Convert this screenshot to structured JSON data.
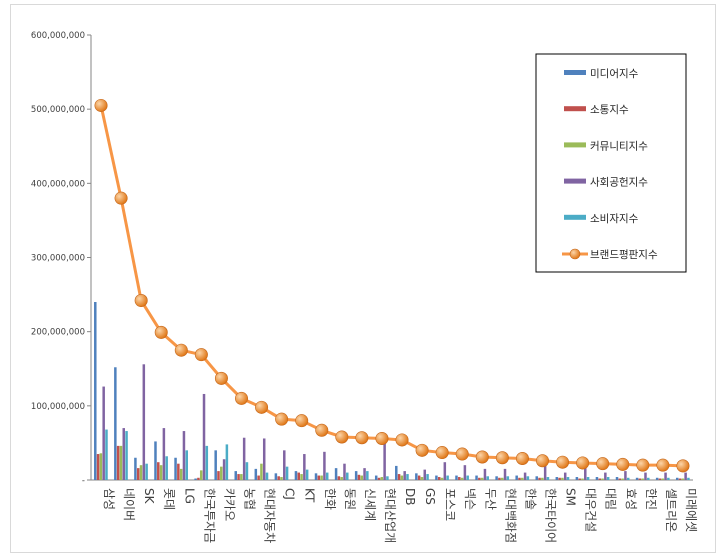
{
  "chart_data": {
    "type": "bar",
    "title": "",
    "xlabel": "",
    "ylabel": "",
    "ylim": [
      0,
      600000000
    ],
    "yticks": [
      0,
      100000000,
      200000000,
      300000000,
      400000000,
      500000000,
      600000000
    ],
    "ytick_labels": [
      "-",
      "100,000,000",
      "200,000,000",
      "300,000,000",
      "400,000,000",
      "500,000,000",
      "600,000,000"
    ],
    "grid": false,
    "legend_position": "top-right",
    "categories": [
      "삼성",
      "네이버",
      "SK",
      "롯데",
      "LG",
      "한국투자금융",
      "카카오",
      "농협",
      "현대자동차",
      "CJ",
      "KT",
      "한화",
      "동원",
      "신세계",
      "현대산업개발",
      "DB",
      "GS",
      "포스코",
      "넥슨",
      "두산",
      "현대백화점",
      "한솔",
      "한국타이어",
      "SM",
      "대우건설",
      "대림",
      "효성",
      "한진",
      "셀트리온",
      "미래에셋"
    ],
    "category_labels": [
      "삼성",
      "네이버",
      "SK",
      "롯데",
      "LG",
      "한국투자금",
      "카카오",
      "농협",
      "현대자동차",
      "CJ",
      "KT",
      "한화",
      "동원",
      "신세계",
      "현대산업개",
      "DB",
      "GS",
      "포스코",
      "넥슨",
      "두산",
      "현대백화점",
      "한솔",
      "한국타이어",
      "SM",
      "대우건설",
      "대림",
      "효성",
      "한진",
      "셀트리온",
      "미래에셋"
    ],
    "series": [
      {
        "name": "미디어지수",
        "kind": "bar",
        "color": "#4f81bd",
        "values": [
          240000000,
          152000000,
          30000000,
          52000000,
          30000000,
          2000000,
          40000000,
          12000000,
          15000000,
          9000000,
          12000000,
          9000000,
          16000000,
          12000000,
          6000000,
          19000000,
          9000000,
          6000000,
          6000000,
          6000000,
          5000000,
          6000000,
          5000000,
          4000000,
          4000000,
          4000000,
          4000000,
          3000000,
          3000000,
          3000000
        ]
      },
      {
        "name": "소통지수",
        "kind": "bar",
        "color": "#c0504d",
        "values": [
          35000000,
          46000000,
          16000000,
          24000000,
          22000000,
          3000000,
          12000000,
          8000000,
          6000000,
          5000000,
          10000000,
          6000000,
          5000000,
          7000000,
          3000000,
          8000000,
          6000000,
          4000000,
          4000000,
          3000000,
          3000000,
          3000000,
          3000000,
          3000000,
          2000000,
          2000000,
          2000000,
          2000000,
          2000000,
          2000000
        ]
      },
      {
        "name": "커뮤니티지수",
        "kind": "bar",
        "color": "#9bbb59",
        "values": [
          36000000,
          46000000,
          20000000,
          20000000,
          15000000,
          13000000,
          18000000,
          8000000,
          22000000,
          4000000,
          8000000,
          6000000,
          4000000,
          6000000,
          4000000,
          6000000,
          4000000,
          3000000,
          3000000,
          3000000,
          3000000,
          3000000,
          3000000,
          3000000,
          2000000,
          2000000,
          2000000,
          2000000,
          2000000,
          2000000
        ]
      },
      {
        "name": "사회공헌지수",
        "kind": "bar",
        "color": "#8064a2",
        "values": [
          126000000,
          70000000,
          156000000,
          70000000,
          66000000,
          116000000,
          28000000,
          57000000,
          56000000,
          40000000,
          35000000,
          38000000,
          22000000,
          16000000,
          52000000,
          12000000,
          14000000,
          24000000,
          20000000,
          15000000,
          15000000,
          10000000,
          20000000,
          10000000,
          18000000,
          10000000,
          12000000,
          10000000,
          10000000,
          10000000
        ]
      },
      {
        "name": "소비자지수",
        "kind": "bar",
        "color": "#4bacc6",
        "values": [
          68000000,
          66000000,
          22000000,
          32000000,
          40000000,
          46000000,
          48000000,
          24000000,
          10000000,
          18000000,
          14000000,
          10000000,
          10000000,
          12000000,
          5000000,
          8000000,
          8000000,
          6000000,
          6000000,
          5000000,
          5000000,
          5000000,
          4000000,
          4000000,
          4000000,
          4000000,
          3000000,
          3000000,
          3000000,
          3000000
        ]
      },
      {
        "name": "브랜드평판지수",
        "kind": "line",
        "color": "#f79646",
        "values": [
          505000000,
          380000000,
          242000000,
          199000000,
          175000000,
          169000000,
          137000000,
          110000000,
          98000000,
          82000000,
          80000000,
          67000000,
          58000000,
          57000000,
          56000000,
          54000000,
          40000000,
          37000000,
          35000000,
          31000000,
          30000000,
          29000000,
          26000000,
          24000000,
          23000000,
          22000000,
          21000000,
          20000000,
          20000000,
          19000000
        ]
      }
    ]
  }
}
